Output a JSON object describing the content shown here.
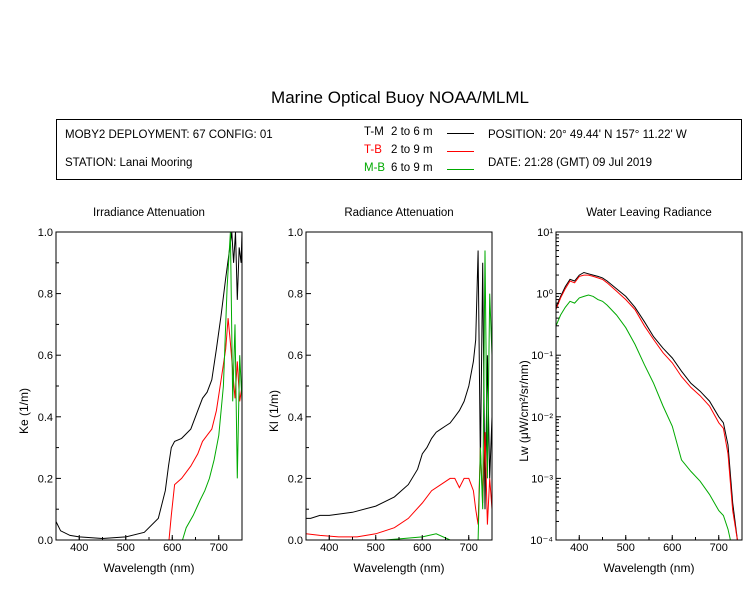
{
  "header": {
    "title": "Marine Optical Buoy NOAA/MLML",
    "deployment": "MOBY2 DEPLOYMENT: 67 CONFIG: 01",
    "station": "STATION: Lanai Mooring",
    "position": "POSITION: 20° 49.44' N   157° 11.22' W",
    "date": "DATE: 21:28 (GMT) 09 Jul 2019"
  },
  "legend": [
    {
      "code": "T-M",
      "range": "2 to 6  m",
      "color": "#000000"
    },
    {
      "code": "T-B",
      "range": "2 to 9  m",
      "color": "#ff0000"
    },
    {
      "code": "M-B",
      "range": "6 to 9  m",
      "color": "#00aa00"
    }
  ],
  "chart_data": [
    {
      "type": "line",
      "title": "Irradiance Attenuation",
      "xlabel": "Wavelength (nm)",
      "ylabel": "Ke  (1/m)",
      "xlim": [
        350,
        750
      ],
      "ylim": [
        0,
        1.0
      ],
      "xticks": [
        "400",
        "500",
        "600",
        "700"
      ],
      "yticks": [
        "0.0",
        "0.2",
        "0.4",
        "0.6",
        "0.8",
        "1.0"
      ],
      "series": [
        {
          "name": "T-M",
          "color": "#000000",
          "x": [
            350,
            360,
            380,
            400,
            450,
            500,
            540,
            570,
            585,
            592,
            598,
            605,
            620,
            640,
            655,
            665,
            675,
            685,
            695,
            705,
            715,
            722,
            728,
            732,
            736,
            740,
            744,
            748,
            750
          ],
          "y": [
            0.06,
            0.03,
            0.015,
            0.01,
            0.005,
            0.01,
            0.025,
            0.07,
            0.16,
            0.24,
            0.3,
            0.32,
            0.33,
            0.36,
            0.42,
            0.46,
            0.48,
            0.52,
            0.62,
            0.73,
            0.85,
            0.93,
            1.0,
            0.9,
            1.0,
            0.78,
            0.95,
            0.9,
            1.0
          ]
        },
        {
          "name": "T-B",
          "color": "#ff0000",
          "x": [
            593,
            598,
            605,
            620,
            640,
            655,
            665,
            675,
            685,
            695,
            705,
            715,
            720,
            725,
            730,
            735,
            740,
            745,
            750
          ],
          "y": [
            0.0,
            0.08,
            0.18,
            0.2,
            0.24,
            0.28,
            0.32,
            0.34,
            0.36,
            0.42,
            0.52,
            0.62,
            0.72,
            0.64,
            0.55,
            0.46,
            0.58,
            0.45,
            0.5
          ]
        },
        {
          "name": "M-B",
          "color": "#00aa00",
          "x": [
            622,
            630,
            645,
            660,
            670,
            680,
            690,
            700,
            710,
            718,
            725,
            730,
            735,
            740,
            745,
            750
          ],
          "y": [
            0.0,
            0.04,
            0.08,
            0.13,
            0.16,
            0.2,
            0.26,
            0.34,
            0.5,
            0.82,
            1.0,
            0.45,
            0.7,
            0.2,
            0.6,
            0.45
          ]
        }
      ]
    },
    {
      "type": "line",
      "title": "Radiance Attenuation",
      "xlabel": "Wavelength (nm)",
      "ylabel": "Kl  (1/m)",
      "xlim": [
        350,
        750
      ],
      "ylim": [
        0,
        1.0
      ],
      "xticks": [
        "400",
        "500",
        "600",
        "700"
      ],
      "yticks": [
        "0.0",
        "0.2",
        "0.4",
        "0.6",
        "0.8",
        "1.0"
      ],
      "series": [
        {
          "name": "T-M",
          "color": "#000000",
          "x": [
            350,
            360,
            380,
            400,
            450,
            500,
            540,
            570,
            590,
            600,
            610,
            620,
            630,
            640,
            650,
            660,
            670,
            680,
            690,
            700,
            710,
            715,
            720,
            725,
            730,
            735,
            740,
            745,
            750
          ],
          "y": [
            0.07,
            0.07,
            0.08,
            0.08,
            0.09,
            0.11,
            0.14,
            0.18,
            0.23,
            0.28,
            0.3,
            0.33,
            0.35,
            0.36,
            0.37,
            0.38,
            0.4,
            0.42,
            0.45,
            0.5,
            0.58,
            0.65,
            0.94,
            0.25,
            0.9,
            0.1,
            0.6,
            0.2,
            0.4
          ]
        },
        {
          "name": "T-B",
          "color": "#ff0000",
          "x": [
            350,
            380,
            420,
            460,
            500,
            540,
            570,
            600,
            620,
            640,
            660,
            670,
            680,
            690,
            700,
            710,
            715,
            720,
            725,
            730,
            735,
            740,
            745,
            750
          ],
          "y": [
            0.02,
            0.015,
            0.01,
            0.01,
            0.02,
            0.04,
            0.07,
            0.12,
            0.16,
            0.18,
            0.2,
            0.2,
            0.17,
            0.2,
            0.2,
            0.16,
            0.1,
            0.05,
            0.3,
            0.12,
            0.35,
            0.05,
            0.2,
            0.1
          ]
        },
        {
          "name": "M-B",
          "color": "#00aa00",
          "x": [
            520,
            560,
            600,
            630,
            660,
            700,
            720,
            725,
            730,
            735,
            740,
            745,
            750
          ],
          "y": [
            0.0,
            0.005,
            0.01,
            0.02,
            0.0,
            0.0,
            0.0,
            0.3,
            0.1,
            0.94,
            0.2,
            0.8,
            0.6
          ]
        }
      ]
    },
    {
      "type": "line",
      "title": "Water Leaving Radiance",
      "xlabel": "Wavelength (nm)",
      "ylabel": "Lw  (μW/cm²/sr/nm)",
      "scale": "log",
      "xlim": [
        350,
        750
      ],
      "ylim": [
        0.0001,
        10
      ],
      "xticks": [
        "400",
        "500",
        "600",
        "700"
      ],
      "yticks": [
        "10⁻⁴",
        "10⁻³",
        "10⁻²",
        "10⁻¹",
        "10⁰",
        "10¹"
      ],
      "series": [
        {
          "name": "T-M",
          "color": "#000000",
          "x": [
            350,
            360,
            370,
            380,
            390,
            400,
            410,
            420,
            430,
            440,
            450,
            460,
            480,
            500,
            520,
            540,
            560,
            580,
            600,
            620,
            640,
            660,
            680,
            700,
            710,
            720,
            730,
            740,
            745
          ],
          "y": [
            0.6,
            0.9,
            1.3,
            1.7,
            1.6,
            2.0,
            2.2,
            2.1,
            2.0,
            1.9,
            1.8,
            1.6,
            1.2,
            0.9,
            0.6,
            0.35,
            0.2,
            0.13,
            0.09,
            0.055,
            0.035,
            0.026,
            0.018,
            0.01,
            0.008,
            0.0035,
            0.0004,
            0.0001,
            0.0001
          ]
        },
        {
          "name": "T-B",
          "color": "#ff0000",
          "x": [
            350,
            360,
            370,
            380,
            390,
            400,
            410,
            420,
            430,
            440,
            450,
            460,
            480,
            500,
            520,
            540,
            560,
            580,
            600,
            620,
            640,
            660,
            680,
            700,
            710,
            720,
            730,
            740,
            745
          ],
          "y": [
            0.55,
            0.85,
            1.2,
            1.6,
            1.5,
            1.9,
            2.0,
            2.0,
            1.9,
            1.8,
            1.7,
            1.5,
            1.1,
            0.8,
            0.55,
            0.3,
            0.18,
            0.11,
            0.075,
            0.045,
            0.03,
            0.022,
            0.015,
            0.008,
            0.0065,
            0.0025,
            0.0003,
            0.0001,
            0.0001
          ]
        },
        {
          "name": "M-B",
          "color": "#00aa00",
          "x": [
            350,
            360,
            370,
            380,
            390,
            400,
            410,
            420,
            430,
            440,
            450,
            460,
            480,
            500,
            520,
            540,
            560,
            580,
            600,
            620,
            640,
            660,
            680,
            700,
            710,
            720,
            725,
            730,
            735
          ],
          "y": [
            0.3,
            0.45,
            0.6,
            0.75,
            0.7,
            0.85,
            0.9,
            0.95,
            0.9,
            0.8,
            0.75,
            0.65,
            0.45,
            0.28,
            0.15,
            0.07,
            0.035,
            0.015,
            0.007,
            0.002,
            0.0013,
            0.0009,
            0.00055,
            0.0003,
            0.00025,
            0.00015,
            0.0001,
            0.0001,
            0.0001
          ]
        }
      ]
    }
  ]
}
